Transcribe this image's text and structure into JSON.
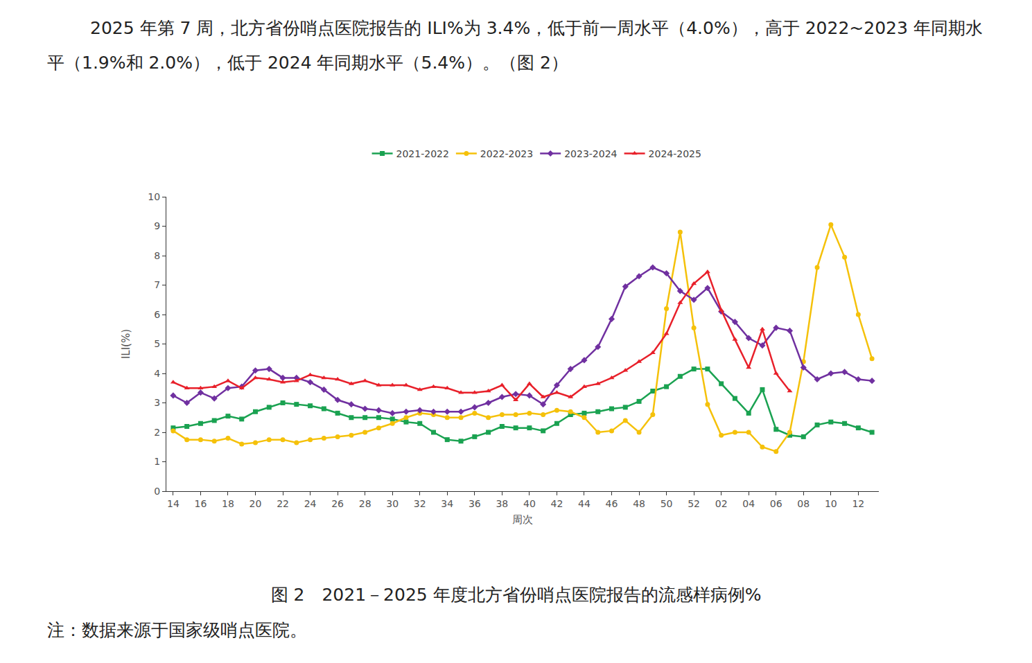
{
  "paragraph": "2025 年第 7 周，北方省份哨点医院报告的 ILI%为 3.4%，低于前一周水平（4.0%），高于 2022~2023 年同期水平（1.9%和 2.0%），低于 2024 年同期水平（5.4%）。（图 2）",
  "caption": "图 2　2021－2025 年度北方省份哨点医院报告的流感样病例%",
  "note": "注：数据来源于国家级哨点医院。",
  "chart_data": {
    "type": "line",
    "x_label": "周次",
    "y_label": "ILI(%)",
    "categories": [
      "14",
      null,
      "16",
      null,
      "18",
      null,
      "20",
      null,
      "22",
      null,
      "24",
      null,
      "26",
      null,
      "28",
      null,
      "30",
      null,
      "32",
      null,
      "34",
      null,
      "36",
      null,
      "38",
      null,
      "40",
      null,
      "42",
      null,
      "44",
      null,
      "46",
      null,
      "48",
      null,
      "50",
      null,
      "52",
      null,
      "02",
      null,
      "04",
      null,
      "06",
      null,
      "08",
      null,
      "10",
      null,
      "12",
      null
    ],
    "series": [
      {
        "name": "2021-2022",
        "color": "#1aa251",
        "marker": "square",
        "values": [
          2.15,
          2.2,
          2.3,
          2.4,
          2.55,
          2.45,
          2.7,
          2.85,
          3.0,
          2.95,
          2.9,
          2.8,
          2.65,
          2.5,
          2.5,
          2.5,
          2.45,
          2.35,
          2.3,
          2.0,
          1.75,
          1.7,
          1.85,
          2.0,
          2.2,
          2.15,
          2.15,
          2.05,
          2.3,
          2.6,
          2.65,
          2.7,
          2.8,
          2.85,
          3.05,
          3.4,
          3.55,
          3.9,
          4.15,
          4.15,
          3.65,
          3.15,
          2.65,
          3.45,
          2.1,
          1.9,
          1.85,
          2.25,
          2.35,
          2.3,
          2.15,
          2.0
        ]
      },
      {
        "name": "2022-2023",
        "color": "#f5c10a",
        "marker": "circle",
        "values": [
          2.05,
          1.75,
          1.75,
          1.7,
          1.8,
          1.6,
          1.65,
          1.75,
          1.75,
          1.65,
          1.75,
          1.8,
          1.85,
          1.9,
          2.0,
          2.15,
          2.3,
          2.5,
          2.65,
          2.6,
          2.5,
          2.5,
          2.65,
          2.5,
          2.6,
          2.6,
          2.65,
          2.6,
          2.75,
          2.7,
          2.5,
          2.0,
          2.05,
          2.4,
          2.0,
          2.6,
          6.2,
          8.8,
          5.55,
          2.95,
          1.9,
          2.0,
          2.0,
          1.5,
          1.35,
          2.0,
          4.4,
          7.6,
          9.05,
          7.95,
          6.0,
          4.5
        ]
      },
      {
        "name": "2023-2024",
        "color": "#7030a0",
        "marker": "diamond",
        "values": [
          3.25,
          3.0,
          3.35,
          3.15,
          3.5,
          3.55,
          4.1,
          4.15,
          3.85,
          3.85,
          3.7,
          3.45,
          3.1,
          2.95,
          2.8,
          2.75,
          2.65,
          2.7,
          2.75,
          2.7,
          2.7,
          2.7,
          2.85,
          3.0,
          3.2,
          3.3,
          3.25,
          2.95,
          3.6,
          4.15,
          4.45,
          4.9,
          5.85,
          6.95,
          7.3,
          7.6,
          7.4,
          6.8,
          6.5,
          6.9,
          6.1,
          5.75,
          5.2,
          4.95,
          5.55,
          5.45,
          4.2,
          3.8,
          4.0,
          4.05,
          3.8,
          3.75
        ]
      },
      {
        "name": "2024-2025",
        "color": "#e8202a",
        "marker": "triangle-up",
        "values": [
          3.7,
          3.5,
          3.5,
          3.55,
          3.75,
          3.5,
          3.85,
          3.8,
          3.7,
          3.75,
          3.95,
          3.85,
          3.8,
          3.65,
          3.75,
          3.6,
          3.6,
          3.6,
          3.45,
          3.55,
          3.5,
          3.35,
          3.35,
          3.4,
          3.6,
          3.1,
          3.65,
          3.2,
          3.35,
          3.2,
          3.55,
          3.65,
          3.85,
          4.1,
          4.4,
          4.7,
          5.35,
          6.4,
          7.05,
          7.45,
          6.15,
          5.15,
          4.2,
          5.5,
          4.0,
          3.4,
          null,
          null,
          null,
          null,
          null,
          null
        ]
      }
    ],
    "ylim": [
      0,
      10
    ],
    "yticks": [
      0,
      1,
      2,
      3,
      4,
      5,
      6,
      7,
      8,
      9,
      10
    ],
    "grid": false,
    "legend": "top"
  }
}
